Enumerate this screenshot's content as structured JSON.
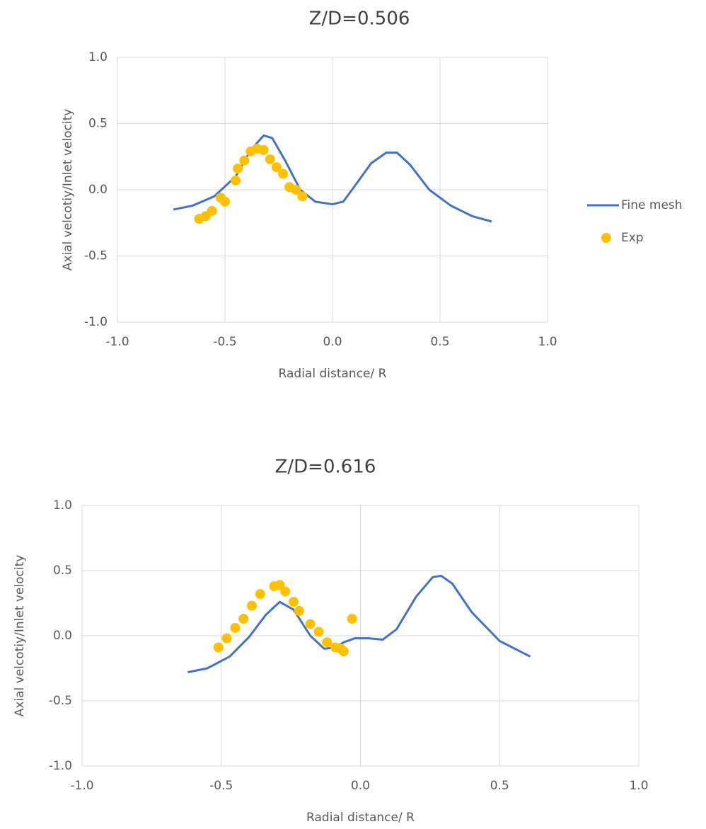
{
  "chart_data": [
    {
      "type": "line",
      "title": "Z/D=0.506",
      "x_label": "Radial distance/ R",
      "y_label": "Axial velcotiy/Inlet velocity",
      "xlim": [
        -1,
        1
      ],
      "ylim": [
        -1,
        1
      ],
      "xticks": [
        {
          "value": -1,
          "label": "-1.0"
        },
        {
          "value": -0.5,
          "label": "-0.5"
        },
        {
          "value": 0,
          "label": "0.0"
        },
        {
          "value": 0.5,
          "label": "0.5"
        },
        {
          "value": 1,
          "label": "1.0"
        }
      ],
      "yticks": [
        {
          "value": -1,
          "label": "-1.0"
        },
        {
          "value": -0.5,
          "label": "-0.5"
        },
        {
          "value": 0,
          "label": "0.0"
        },
        {
          "value": 0.5,
          "label": "0.5"
        },
        {
          "value": 1,
          "label": "1.0"
        }
      ],
      "grid": true,
      "legend": "right",
      "series": [
        {
          "name": "Fine mesh",
          "kind": "line",
          "color": "#4472c4",
          "x": [
            -0.74,
            -0.65,
            -0.55,
            -0.45,
            -0.38,
            -0.32,
            -0.28,
            -0.22,
            -0.15,
            -0.08,
            0,
            0.05,
            0.1,
            0.18,
            0.25,
            0.3,
            0.36,
            0.45,
            0.55,
            0.65,
            0.74
          ],
          "values": [
            -0.15,
            -0.12,
            -0.05,
            0.1,
            0.3,
            0.41,
            0.39,
            0.22,
            0.0,
            -0.09,
            -0.11,
            -0.09,
            0.02,
            0.2,
            0.28,
            0.28,
            0.19,
            0.0,
            -0.12,
            -0.2,
            -0.24
          ]
        },
        {
          "name": "Exp",
          "kind": "scatter",
          "color": "#ffc000",
          "x": [
            -0.62,
            -0.59,
            -0.56,
            -0.52,
            -0.5,
            -0.45,
            -0.44,
            -0.41,
            -0.38,
            -0.35,
            -0.32,
            -0.29,
            -0.26,
            -0.23,
            -0.2,
            -0.17,
            -0.14
          ],
          "values": [
            -0.22,
            -0.2,
            -0.16,
            -0.06,
            -0.09,
            0.07,
            0.16,
            0.22,
            0.29,
            0.31,
            0.3,
            0.23,
            0.17,
            0.12,
            0.02,
            0.0,
            -0.05
          ]
        }
      ]
    },
    {
      "type": "line",
      "title": "Z/D=0.616",
      "x_label": "Radial distance/ R",
      "y_label": "Axial velcotiy/Inlet velocity",
      "xlim": [
        -1,
        1
      ],
      "ylim": [
        -1,
        1
      ],
      "xticks": [
        {
          "value": -1,
          "label": "-1.0"
        },
        {
          "value": -0.5,
          "label": "-0.5"
        },
        {
          "value": 0,
          "label": "0.0"
        },
        {
          "value": 0.5,
          "label": "0.5"
        },
        {
          "value": 1,
          "label": "1.0"
        }
      ],
      "yticks": [
        {
          "value": -1,
          "label": "-1.0"
        },
        {
          "value": -0.5,
          "label": "-0.5"
        },
        {
          "value": 0,
          "label": "0.0"
        },
        {
          "value": 0.5,
          "label": "0.5"
        },
        {
          "value": 1,
          "label": "1.0"
        }
      ],
      "grid": true,
      "series": [
        {
          "kind": "line",
          "color": "#4472c4",
          "x": [
            -0.62,
            -0.55,
            -0.47,
            -0.4,
            -0.34,
            -0.29,
            -0.24,
            -0.18,
            -0.13,
            -0.09,
            -0.06,
            -0.02,
            0.03,
            0.08,
            0.13,
            0.2,
            0.26,
            0.29,
            0.33,
            0.4,
            0.5,
            0.61
          ],
          "values": [
            -0.28,
            -0.25,
            -0.16,
            -0.01,
            0.16,
            0.26,
            0.2,
            0.0,
            -0.1,
            -0.09,
            -0.05,
            -0.02,
            -0.02,
            -0.03,
            0.05,
            0.3,
            0.45,
            0.46,
            0.4,
            0.18,
            -0.04,
            -0.16
          ]
        },
        {
          "kind": "scatter",
          "color": "#ffc000",
          "x": [
            -0.51,
            -0.48,
            -0.45,
            -0.42,
            -0.39,
            -0.36,
            -0.31,
            -0.29,
            -0.27,
            -0.24,
            -0.22,
            -0.18,
            -0.15,
            -0.12,
            -0.09,
            -0.07,
            -0.06,
            -0.03
          ],
          "values": [
            -0.09,
            -0.02,
            0.06,
            0.13,
            0.23,
            0.32,
            0.38,
            0.39,
            0.34,
            0.26,
            0.19,
            0.09,
            0.03,
            -0.05,
            -0.09,
            -0.1,
            -0.12,
            0.13
          ]
        }
      ]
    }
  ]
}
